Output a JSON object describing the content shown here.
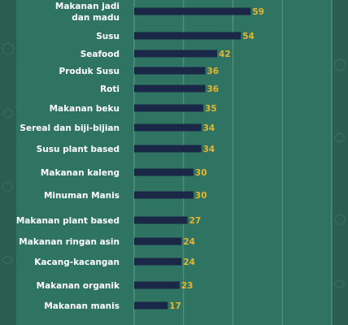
{
  "chart_data": {
    "type": "bar",
    "orientation": "horizontal",
    "categories": [
      "Makanan jadi dan madu",
      "Susu",
      "Seafood",
      "Produk Susu",
      "Roti",
      "Makanan beku",
      "Sereal dan biji-bijian",
      "Susu plant based",
      "Makanan kaleng",
      "Minuman Manis",
      "Makanan plant based",
      "Makanan ringan asin",
      "Kacang-kacangan",
      "Makanan organik",
      "Makanan manis"
    ],
    "values": [
      59,
      54,
      42,
      36,
      36,
      35,
      34,
      34,
      30,
      30,
      27,
      24,
      24,
      23,
      17
    ],
    "xlim": [
      0,
      100
    ],
    "grid": true,
    "value_labels": true
  },
  "colors": {
    "background": "#2a5e50",
    "panel": "#2f7363",
    "bar": "#1b2746",
    "value_label": "#e6b52e",
    "category_label": "#ffffff",
    "grid": "#5f9888"
  }
}
